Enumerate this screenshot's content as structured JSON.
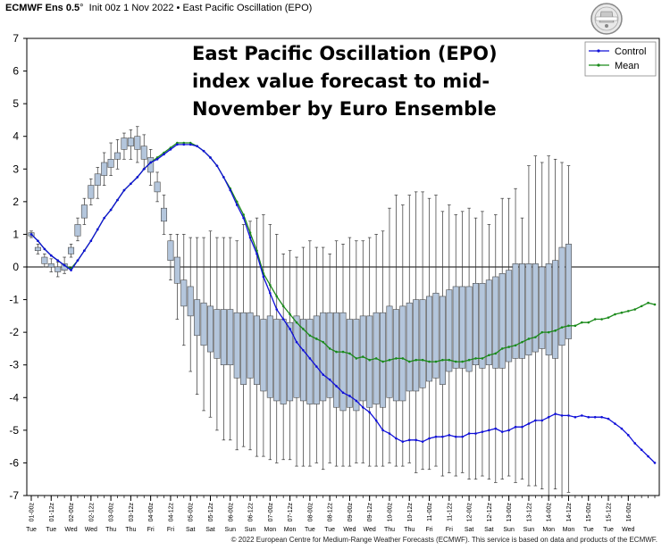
{
  "header": {
    "model": "ECMWF Ens 0.5",
    "degree": "°",
    "init": "Init 00z 1 Nov 2022",
    "bullet": "•",
    "product": "East Pacific Oscillation (EPO)"
  },
  "logo": {
    "text": "WeatherBELL",
    "icon": "weatherbell-logo"
  },
  "annotation_lines": [
    "East Pacific Oscillation (EPO)",
    "index value forecast to mid-",
    "November by Euro Ensemble"
  ],
  "footer": "© 2022 European Centre for Medium-Range Weather Forecasts (ECMWF). This service is based on data and products of the ECMWF.",
  "colors": {
    "control": "#1010d8",
    "mean": "#1a8a1a",
    "box_fill": "#b4c6dc",
    "box_stroke": "#4a4a4a",
    "whisker": "#333333",
    "zero_line": "#000000"
  },
  "chart_data": {
    "type": "line",
    "ylim": [
      -7,
      7
    ],
    "yticks": [
      7,
      6,
      5,
      4,
      3,
      2,
      1,
      0,
      -1,
      -2,
      -3,
      -4,
      -5,
      -6,
      -7
    ],
    "grid": false,
    "legend_position": "top-right",
    "legend": [
      "Control",
      "Mean"
    ],
    "x_tick_labels": [
      "01-00z",
      "01-12z",
      "02-00z",
      "02-12z",
      "03-00z",
      "03-12z",
      "04-00z",
      "04-12z",
      "05-00z",
      "05-12z",
      "06-00z",
      "06-12z",
      "07-00z",
      "07-12z",
      "08-00z",
      "08-12z",
      "09-00z",
      "09-12z",
      "10-00z",
      "10-12z",
      "11-00z",
      "11-12z",
      "12-00z",
      "12-12z",
      "13-00z",
      "13-12z",
      "14-00z",
      "14-12z",
      "15-00z",
      "15-12z",
      "16-00z"
    ],
    "day_labels": [
      "Tue",
      "Tue",
      "Wed",
      "Wed",
      "Thu",
      "Thu",
      "Fri",
      "Fri",
      "Sat",
      "Sat",
      "Sun",
      "Sun",
      "Mon",
      "Mon",
      "Tue",
      "Tue",
      "Wed",
      "Wed",
      "Thu",
      "Thu",
      "Fri",
      "Fri",
      "Sat",
      "Sat",
      "Sun",
      "Sun",
      "Mon",
      "Mon",
      "Tue",
      "Tue",
      "Wed"
    ],
    "series": [
      {
        "name": "Control",
        "values": [
          1.0,
          0.8,
          0.55,
          0.35,
          0.2,
          0.05,
          -0.1,
          0.2,
          0.5,
          0.8,
          1.15,
          1.5,
          1.75,
          2.05,
          2.35,
          2.55,
          2.75,
          3.0,
          3.2,
          3.3,
          3.45,
          3.6,
          3.75,
          3.75,
          3.75,
          3.7,
          3.55,
          3.35,
          3.1,
          2.75,
          2.35,
          1.9,
          1.5,
          0.9,
          0.4,
          -0.3,
          -0.8,
          -1.3,
          -1.6,
          -1.9,
          -2.3,
          -2.55,
          -2.8,
          -3.05,
          -3.3,
          -3.45,
          -3.65,
          -3.85,
          -3.95,
          -4.1,
          -4.3,
          -4.45,
          -4.7,
          -5.0,
          -5.1,
          -5.25,
          -5.35,
          -5.3,
          -5.3,
          -5.35,
          -5.25,
          -5.2,
          -5.2,
          -5.15,
          -5.2,
          -5.2,
          -5.1,
          -5.1,
          -5.05,
          -5.0,
          -4.95,
          -5.05,
          -5.0,
          -4.9,
          -4.9,
          -4.8,
          -4.7,
          -4.7,
          -4.6,
          -4.5,
          -4.55,
          -4.55,
          -4.6,
          -4.55,
          -4.6,
          -4.6,
          -4.6,
          -4.65,
          -4.8,
          -4.95,
          -5.15,
          -5.4,
          -5.6,
          -5.8,
          -6.0
        ]
      },
      {
        "name": "Mean",
        "values": [
          1.0,
          0.8,
          0.55,
          0.35,
          0.2,
          0.05,
          -0.05,
          0.2,
          0.5,
          0.8,
          1.15,
          1.5,
          1.75,
          2.05,
          2.35,
          2.55,
          2.75,
          3.0,
          3.2,
          3.35,
          3.5,
          3.65,
          3.8,
          3.8,
          3.8,
          3.7,
          3.55,
          3.35,
          3.1,
          2.75,
          2.4,
          2.0,
          1.6,
          1.05,
          0.5,
          -0.2,
          -0.55,
          -0.9,
          -1.2,
          -1.45,
          -1.7,
          -1.9,
          -2.1,
          -2.2,
          -2.3,
          -2.5,
          -2.6,
          -2.6,
          -2.65,
          -2.8,
          -2.75,
          -2.85,
          -2.8,
          -2.9,
          -2.85,
          -2.8,
          -2.8,
          -2.9,
          -2.85,
          -2.85,
          -2.9,
          -2.9,
          -2.85,
          -2.85,
          -2.9,
          -2.9,
          -2.85,
          -2.8,
          -2.8,
          -2.7,
          -2.65,
          -2.5,
          -2.45,
          -2.4,
          -2.3,
          -2.2,
          -2.15,
          -2.0,
          -2.0,
          -1.95,
          -1.85,
          -1.8,
          -1.8,
          -1.7,
          -1.7,
          -1.6,
          -1.6,
          -1.55,
          -1.45,
          -1.4,
          -1.35,
          -1.3,
          -1.2,
          -1.1,
          -1.15
        ]
      }
    ],
    "box_plots": [
      {
        "index": 0,
        "min": 0.9,
        "q1": 0.95,
        "q3": 1.05,
        "max": 1.1
      },
      {
        "index": 1,
        "min": 0.4,
        "q1": 0.5,
        "q3": 0.6,
        "max": 0.7
      },
      {
        "index": 2,
        "min": 0.0,
        "q1": 0.1,
        "q3": 0.3,
        "max": 0.4
      },
      {
        "index": 3,
        "min": -0.15,
        "q1": 0.0,
        "q3": 0.1,
        "max": 0.25
      },
      {
        "index": 4,
        "min": -0.3,
        "q1": -0.15,
        "q3": 0.0,
        "max": 0.15
      },
      {
        "index": 5,
        "min": -0.2,
        "q1": -0.1,
        "q3": 0.1,
        "max": 0.3
      },
      {
        "index": 6,
        "min": 0.3,
        "q1": 0.4,
        "q3": 0.6,
        "max": 0.7
      },
      {
        "index": 7,
        "min": 0.8,
        "q1": 0.95,
        "q3": 1.3,
        "max": 1.5
      },
      {
        "index": 8,
        "min": 1.3,
        "q1": 1.5,
        "q3": 1.9,
        "max": 2.1
      },
      {
        "index": 9,
        "min": 1.9,
        "q1": 2.1,
        "q3": 2.5,
        "max": 2.7
      },
      {
        "index": 10,
        "min": 2.1,
        "q1": 2.5,
        "q3": 2.85,
        "max": 3.05
      },
      {
        "index": 11,
        "min": 2.5,
        "q1": 2.8,
        "q3": 3.2,
        "max": 3.5
      },
      {
        "index": 12,
        "min": 2.8,
        "q1": 3.05,
        "q3": 3.3,
        "max": 3.8
      },
      {
        "index": 13,
        "min": 3.0,
        "q1": 3.3,
        "q3": 3.5,
        "max": 3.9
      },
      {
        "index": 14,
        "min": 3.3,
        "q1": 3.6,
        "q3": 3.95,
        "max": 4.1
      },
      {
        "index": 15,
        "min": 3.3,
        "q1": 3.7,
        "q3": 3.95,
        "max": 4.2
      },
      {
        "index": 16,
        "min": 3.2,
        "q1": 3.6,
        "q3": 4.0,
        "max": 4.3
      },
      {
        "index": 17,
        "min": 3.0,
        "q1": 3.3,
        "q3": 3.7,
        "max": 4.05
      },
      {
        "index": 18,
        "min": 2.5,
        "q1": 2.9,
        "q3": 3.35,
        "max": 3.6
      },
      {
        "index": 19,
        "min": 2.0,
        "q1": 2.3,
        "q3": 2.6,
        "max": 2.9
      },
      {
        "index": 20,
        "min": 1.0,
        "q1": 1.4,
        "q3": 1.8,
        "max": 2.2
      },
      {
        "index": 21,
        "min": -0.4,
        "q1": 0.2,
        "q3": 0.8,
        "max": 1.0
      },
      {
        "index": 22,
        "min": -1.6,
        "q1": -0.5,
        "q3": 0.3,
        "max": 1.0
      },
      {
        "index": 23,
        "min": -2.4,
        "q1": -1.2,
        "q3": -0.4,
        "max": 1.0
      },
      {
        "index": 24,
        "min": -3.2,
        "q1": -1.5,
        "q3": -0.6,
        "max": 0.9
      },
      {
        "index": 25,
        "min": -3.9,
        "q1": -2.1,
        "q3": -1.0,
        "max": 0.9
      },
      {
        "index": 26,
        "min": -4.4,
        "q1": -2.4,
        "q3": -1.1,
        "max": 0.9
      },
      {
        "index": 27,
        "min": -4.6,
        "q1": -2.6,
        "q3": -1.2,
        "max": 1.1
      },
      {
        "index": 28,
        "min": -5.0,
        "q1": -2.8,
        "q3": -1.3,
        "max": 0.9
      },
      {
        "index": 29,
        "min": -5.3,
        "q1": -3.0,
        "q3": -1.3,
        "max": 0.9
      },
      {
        "index": 30,
        "min": -5.3,
        "q1": -3.0,
        "q3": -1.3,
        "max": 0.9
      },
      {
        "index": 31,
        "min": -5.6,
        "q1": -3.4,
        "q3": -1.4,
        "max": 0.8
      },
      {
        "index": 32,
        "min": -5.5,
        "q1": -3.6,
        "q3": -1.4,
        "max": 1.3
      },
      {
        "index": 33,
        "min": -5.6,
        "q1": -3.4,
        "q3": -1.4,
        "max": 1.4
      },
      {
        "index": 34,
        "min": -5.8,
        "q1": -3.6,
        "q3": -1.5,
        "max": 1.5
      },
      {
        "index": 35,
        "min": -5.8,
        "q1": -3.8,
        "q3": -1.6,
        "max": 1.6
      },
      {
        "index": 36,
        "min": -5.9,
        "q1": -4.0,
        "q3": -1.5,
        "max": 1.3
      },
      {
        "index": 37,
        "min": -6.0,
        "q1": -4.1,
        "q3": -1.6,
        "max": 1.0
      },
      {
        "index": 38,
        "min": -5.9,
        "q1": -4.2,
        "q3": -1.6,
        "max": 0.4
      },
      {
        "index": 39,
        "min": -5.9,
        "q1": -4.1,
        "q3": -1.7,
        "max": 0.5
      },
      {
        "index": 40,
        "min": -6.1,
        "q1": -4.0,
        "q3": -1.5,
        "max": 0.3
      },
      {
        "index": 41,
        "min": -6.1,
        "q1": -4.1,
        "q3": -1.6,
        "max": 0.6
      },
      {
        "index": 42,
        "min": -6.1,
        "q1": -4.2,
        "q3": -1.6,
        "max": 0.8
      },
      {
        "index": 43,
        "min": -6.0,
        "q1": -4.2,
        "q3": -1.5,
        "max": 0.6
      },
      {
        "index": 44,
        "min": -6.2,
        "q1": -4.1,
        "q3": -1.4,
        "max": 0.6
      },
      {
        "index": 45,
        "min": -6.0,
        "q1": -4.0,
        "q3": -1.4,
        "max": 0.4
      },
      {
        "index": 46,
        "min": -6.1,
        "q1": -4.3,
        "q3": -1.4,
        "max": 0.8
      },
      {
        "index": 47,
        "min": -6.1,
        "q1": -4.4,
        "q3": -1.4,
        "max": 0.7
      },
      {
        "index": 48,
        "min": -6.1,
        "q1": -4.3,
        "q3": -1.6,
        "max": 0.9
      },
      {
        "index": 49,
        "min": -6.0,
        "q1": -4.4,
        "q3": -1.6,
        "max": 0.8
      },
      {
        "index": 50,
        "min": -6.0,
        "q1": -4.1,
        "q3": -1.5,
        "max": 0.8
      },
      {
        "index": 51,
        "min": -6.1,
        "q1": -4.3,
        "q3": -1.5,
        "max": 0.9
      },
      {
        "index": 52,
        "min": -6.1,
        "q1": -4.2,
        "q3": -1.4,
        "max": 1.0
      },
      {
        "index": 53,
        "min": -6.1,
        "q1": -4.3,
        "q3": -1.4,
        "max": 1.1
      },
      {
        "index": 54,
        "min": -6.0,
        "q1": -4.0,
        "q3": -1.2,
        "max": 1.8
      },
      {
        "index": 55,
        "min": -6.1,
        "q1": -4.1,
        "q3": -1.3,
        "max": 2.2
      },
      {
        "index": 56,
        "min": -6.1,
        "q1": -4.1,
        "q3": -1.2,
        "max": 1.9
      },
      {
        "index": 57,
        "min": -6.0,
        "q1": -3.8,
        "q3": -1.1,
        "max": 2.2
      },
      {
        "index": 58,
        "min": -6.3,
        "q1": -3.8,
        "q3": -1.0,
        "max": 2.3
      },
      {
        "index": 59,
        "min": -6.2,
        "q1": -3.7,
        "q3": -1.0,
        "max": 2.3
      },
      {
        "index": 60,
        "min": -6.2,
        "q1": -3.5,
        "q3": -0.9,
        "max": 2.1
      },
      {
        "index": 61,
        "min": -6.1,
        "q1": -3.4,
        "q3": -0.8,
        "max": 2.2
      },
      {
        "index": 62,
        "min": -6.4,
        "q1": -3.6,
        "q3": -0.9,
        "max": 1.7
      },
      {
        "index": 63,
        "min": -6.3,
        "q1": -3.2,
        "q3": -0.7,
        "max": 1.9
      },
      {
        "index": 64,
        "min": -6.4,
        "q1": -3.1,
        "q3": -0.6,
        "max": 1.6
      },
      {
        "index": 65,
        "min": -6.3,
        "q1": -3.1,
        "q3": -0.6,
        "max": 1.7
      },
      {
        "index": 66,
        "min": -6.5,
        "q1": -3.2,
        "q3": -0.6,
        "max": 1.8
      },
      {
        "index": 67,
        "min": -6.5,
        "q1": -3.0,
        "q3": -0.5,
        "max": 1.5
      },
      {
        "index": 68,
        "min": -6.4,
        "q1": -3.1,
        "q3": -0.5,
        "max": 1.7
      },
      {
        "index": 69,
        "min": -6.5,
        "q1": -3.0,
        "q3": -0.4,
        "max": 1.3
      },
      {
        "index": 70,
        "min": -6.6,
        "q1": -3.1,
        "q3": -0.3,
        "max": 1.6
      },
      {
        "index": 71,
        "min": -6.5,
        "q1": -3.1,
        "q3": -0.2,
        "max": 2.1
      },
      {
        "index": 72,
        "min": -6.4,
        "q1": -2.9,
        "q3": -0.1,
        "max": 2.1
      },
      {
        "index": 73,
        "min": -6.6,
        "q1": -2.8,
        "q3": 0.1,
        "max": 2.4
      },
      {
        "index": 74,
        "min": -6.5,
        "q1": -2.8,
        "q3": 0.1,
        "max": 1.5
      },
      {
        "index": 75,
        "min": -6.7,
        "q1": -2.7,
        "q3": 0.1,
        "max": 3.1
      },
      {
        "index": 76,
        "min": -6.7,
        "q1": -2.6,
        "q3": 0.1,
        "max": 3.4
      },
      {
        "index": 77,
        "min": -6.8,
        "q1": -2.5,
        "q3": 0.0,
        "max": 3.2
      },
      {
        "index": 78,
        "min": -7.0,
        "q1": -2.7,
        "q3": 0.1,
        "max": 3.4
      },
      {
        "index": 79,
        "min": -6.8,
        "q1": -2.8,
        "q3": 0.2,
        "max": 3.3
      },
      {
        "index": 80,
        "min": -7.0,
        "q1": -2.4,
        "q3": 0.6,
        "max": 3.2
      },
      {
        "index": 81,
        "min": -6.9,
        "q1": -2.2,
        "q3": 0.7,
        "max": 3.1
      }
    ]
  }
}
